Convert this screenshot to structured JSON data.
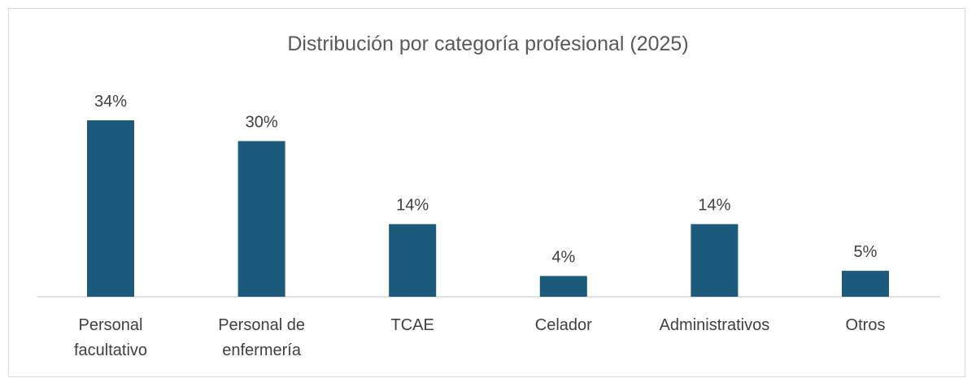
{
  "chart_data": {
    "type": "bar",
    "title": "Distribución por categoría profesional (2025)",
    "categories": [
      [
        "Personal",
        "facultativo"
      ],
      [
        "Personal de",
        "enfermería"
      ],
      [
        "TCAE"
      ],
      [
        "Celador"
      ],
      [
        "Administrativos"
      ],
      [
        "Otros"
      ]
    ],
    "values": [
      34,
      30,
      14,
      4,
      14,
      5
    ],
    "value_labels": [
      "34%",
      "30%",
      "14%",
      "4%",
      "14%",
      "5%"
    ],
    "unit": "%",
    "ylim": [
      0,
      34
    ],
    "grid": false,
    "legend": "none",
    "bar_color": "#1b5a7a"
  }
}
